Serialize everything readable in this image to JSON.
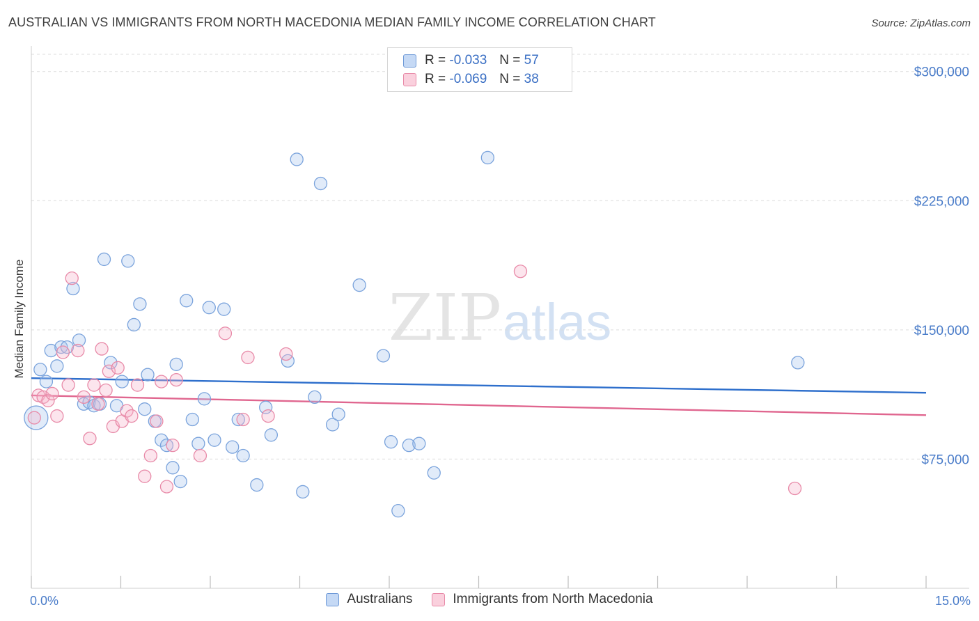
{
  "title": "AUSTRALIAN VS IMMIGRANTS FROM NORTH MACEDONIA MEDIAN FAMILY INCOME CORRELATION CHART",
  "source": "Source: ZipAtlas.com",
  "watermark": {
    "zip": "ZIP",
    "atlas": "atlas"
  },
  "legend": [
    {
      "r_label": "R = ",
      "r_value": "-0.033",
      "n_label": "N = ",
      "n_value": "57"
    },
    {
      "r_label": "R = ",
      "r_value": "-0.069",
      "n_label": "N = ",
      "n_value": "38"
    }
  ],
  "chart_data": {
    "type": "scatter",
    "title": "AUSTRALIAN VS IMMIGRANTS FROM NORTH MACEDONIA MEDIAN FAMILY INCOME CORRELATION CHART",
    "xlabel": "",
    "ylabel": "Median Family Income",
    "xlim": [
      0,
      15
    ],
    "ylim": [
      0,
      310000
    ],
    "x_tick_labels": [
      "0.0%",
      "15.0%"
    ],
    "y_ticks": [
      75000,
      150000,
      225000,
      300000
    ],
    "y_tick_labels": [
      "$75,000",
      "$150,000",
      "$225,000",
      "$300,000"
    ],
    "colors": {
      "Australians": "#5b8fd9",
      "Immigrants from North Macedonia": "#e879a0",
      "australians_line": "#2e6fcc",
      "macedonia_line": "#e0668f"
    },
    "series": [
      {
        "name": "Australians",
        "trend": {
          "x": [
            0,
            15
          ],
          "y": [
            122000,
            113500
          ]
        },
        "points": [
          {
            "x": 0.08,
            "y": 99000,
            "big": true
          },
          {
            "x": 0.15,
            "y": 127000
          },
          {
            "x": 0.25,
            "y": 120000
          },
          {
            "x": 0.33,
            "y": 138000
          },
          {
            "x": 0.43,
            "y": 129000
          },
          {
            "x": 0.5,
            "y": 140000
          },
          {
            "x": 0.6,
            "y": 140000
          },
          {
            "x": 0.7,
            "y": 174000
          },
          {
            "x": 0.8,
            "y": 144000
          },
          {
            "x": 0.88,
            "y": 107000
          },
          {
            "x": 0.97,
            "y": 108000
          },
          {
            "x": 1.05,
            "y": 106000
          },
          {
            "x": 1.15,
            "y": 107000
          },
          {
            "x": 1.22,
            "y": 191000
          },
          {
            "x": 1.33,
            "y": 131000
          },
          {
            "x": 1.43,
            "y": 106000
          },
          {
            "x": 1.52,
            "y": 120000
          },
          {
            "x": 1.62,
            "y": 190000
          },
          {
            "x": 1.72,
            "y": 153000
          },
          {
            "x": 1.82,
            "y": 165000
          },
          {
            "x": 1.9,
            "y": 104000
          },
          {
            "x": 1.95,
            "y": 124000
          },
          {
            "x": 2.07,
            "y": 97000
          },
          {
            "x": 2.18,
            "y": 86000
          },
          {
            "x": 2.27,
            "y": 83000
          },
          {
            "x": 2.37,
            "y": 70000
          },
          {
            "x": 2.43,
            "y": 130000
          },
          {
            "x": 2.5,
            "y": 62000
          },
          {
            "x": 2.6,
            "y": 167000
          },
          {
            "x": 2.7,
            "y": 98000
          },
          {
            "x": 2.8,
            "y": 84000
          },
          {
            "x": 2.9,
            "y": 110000
          },
          {
            "x": 2.98,
            "y": 163000
          },
          {
            "x": 3.07,
            "y": 86000
          },
          {
            "x": 3.23,
            "y": 162000
          },
          {
            "x": 3.37,
            "y": 82000
          },
          {
            "x": 3.47,
            "y": 98000
          },
          {
            "x": 3.55,
            "y": 77000
          },
          {
            "x": 3.78,
            "y": 60000
          },
          {
            "x": 3.93,
            "y": 105000
          },
          {
            "x": 4.02,
            "y": 89000
          },
          {
            "x": 4.3,
            "y": 132000
          },
          {
            "x": 4.45,
            "y": 249000
          },
          {
            "x": 4.55,
            "y": 56000
          },
          {
            "x": 4.75,
            "y": 111000
          },
          {
            "x": 4.85,
            "y": 235000
          },
          {
            "x": 5.05,
            "y": 95000
          },
          {
            "x": 5.15,
            "y": 101000
          },
          {
            "x": 5.5,
            "y": 176000
          },
          {
            "x": 5.9,
            "y": 135000
          },
          {
            "x": 6.03,
            "y": 85000
          },
          {
            "x": 6.15,
            "y": 45000
          },
          {
            "x": 6.33,
            "y": 83000
          },
          {
            "x": 6.5,
            "y": 84000
          },
          {
            "x": 6.75,
            "y": 67000
          },
          {
            "x": 7.65,
            "y": 250000
          },
          {
            "x": 12.85,
            "y": 131000
          }
        ]
      },
      {
        "name": "Immigrants from North Macedonia",
        "trend": {
          "x": [
            0,
            15
          ],
          "y": [
            112000,
            100500
          ]
        },
        "points": [
          {
            "x": 0.05,
            "y": 99000
          },
          {
            "x": 0.12,
            "y": 112000
          },
          {
            "x": 0.2,
            "y": 111000
          },
          {
            "x": 0.28,
            "y": 109000
          },
          {
            "x": 0.35,
            "y": 113000
          },
          {
            "x": 0.43,
            "y": 100000
          },
          {
            "x": 0.53,
            "y": 137000
          },
          {
            "x": 0.62,
            "y": 118000
          },
          {
            "x": 0.68,
            "y": 180000
          },
          {
            "x": 0.78,
            "y": 138000
          },
          {
            "x": 0.88,
            "y": 111000
          },
          {
            "x": 0.98,
            "y": 87000
          },
          {
            "x": 1.05,
            "y": 118000
          },
          {
            "x": 1.12,
            "y": 107000
          },
          {
            "x": 1.18,
            "y": 139000
          },
          {
            "x": 1.25,
            "y": 115000
          },
          {
            "x": 1.3,
            "y": 126000
          },
          {
            "x": 1.37,
            "y": 94000
          },
          {
            "x": 1.45,
            "y": 128000
          },
          {
            "x": 1.52,
            "y": 97000
          },
          {
            "x": 1.6,
            "y": 103000
          },
          {
            "x": 1.68,
            "y": 100000
          },
          {
            "x": 1.78,
            "y": 118000
          },
          {
            "x": 1.9,
            "y": 65000
          },
          {
            "x": 2.0,
            "y": 77000
          },
          {
            "x": 2.1,
            "y": 97000
          },
          {
            "x": 2.18,
            "y": 120000
          },
          {
            "x": 2.27,
            "y": 59000
          },
          {
            "x": 2.37,
            "y": 83000
          },
          {
            "x": 2.43,
            "y": 121000
          },
          {
            "x": 2.83,
            "y": 77000
          },
          {
            "x": 3.25,
            "y": 148000
          },
          {
            "x": 3.55,
            "y": 98000
          },
          {
            "x": 3.63,
            "y": 134000
          },
          {
            "x": 3.97,
            "y": 100000
          },
          {
            "x": 4.27,
            "y": 136000
          },
          {
            "x": 8.2,
            "y": 184000
          },
          {
            "x": 12.8,
            "y": 58000
          }
        ]
      }
    ]
  }
}
